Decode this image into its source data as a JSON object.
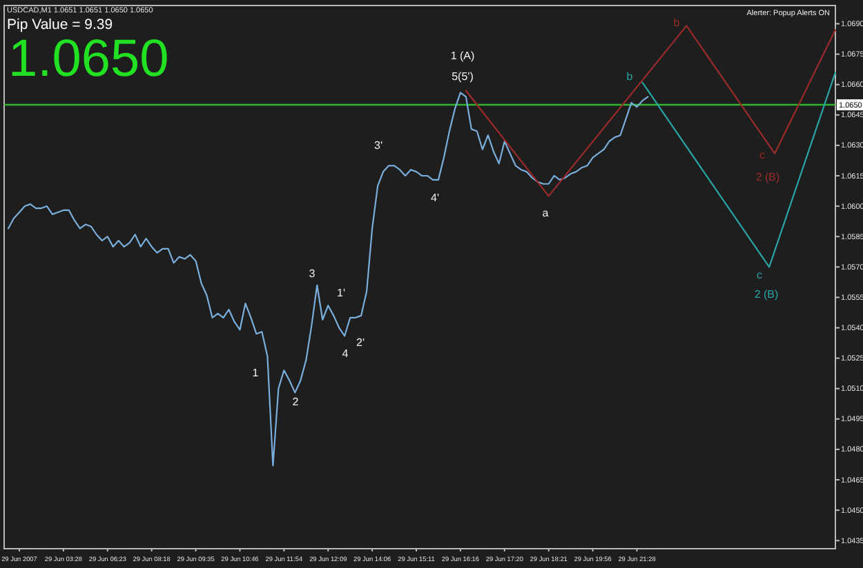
{
  "chart_data": {
    "type": "line",
    "title": "USDCAD,M1  1.0651 1.0651 1.0650 1.0650",
    "subtitle": "Pip Value = 9.39",
    "annotations": [
      "1.0650",
      "Alerter:  Popup Alerts ON",
      "1",
      "2",
      "3",
      "4",
      "1'",
      "2'",
      "3'",
      "4'",
      "1 (A)",
      "5(5')",
      "a",
      "b",
      "b",
      "c",
      "2 (B)",
      "c",
      "2 (B)"
    ],
    "categories": [
      null,
      null,
      "29 Jun 2007",
      null,
      null,
      null,
      null,
      null,
      null,
      null,
      "29 Jun 03:28",
      null,
      null,
      null,
      null,
      null,
      null,
      null,
      "29 Jun 06:23",
      null,
      null,
      null,
      null,
      null,
      null,
      null,
      "29 Jun 08:18",
      null,
      null,
      null,
      null,
      null,
      null,
      null,
      "29 Jun 09:35",
      null,
      null,
      null,
      null,
      null,
      null,
      null,
      "29 Jun 10:46",
      null,
      null,
      null,
      null,
      null,
      null,
      null,
      "29 Jun 11:54",
      null,
      null,
      null,
      null,
      null,
      null,
      null,
      "29 Jun 12:09",
      null,
      null,
      null,
      null,
      null,
      null,
      null,
      "29 Jun 14:06",
      null,
      null,
      null,
      null,
      null,
      null,
      null,
      "29 Jun 15:11",
      null,
      null,
      null,
      null,
      null,
      null,
      null,
      "29 Jun 16:16",
      null,
      null,
      null,
      null,
      null,
      null,
      null,
      "29 Jun 17:20",
      null,
      null,
      null,
      null,
      null,
      null,
      null,
      "29 Jun 18:21",
      null,
      null,
      null,
      null,
      null,
      null,
      null,
      "29 Jun 19:56",
      null,
      null,
      null,
      null,
      null,
      null,
      null,
      "29 Jun 21:28",
      null,
      null,
      null,
      null,
      null,
      null,
      null,
      null,
      null,
      null,
      null,
      null,
      null,
      null,
      null,
      null,
      null,
      null,
      null,
      null,
      null,
      null,
      null,
      null,
      null,
      null,
      null,
      null,
      null,
      null,
      null,
      null,
      null,
      null,
      null,
      null
    ],
    "series": [
      {
        "color": "#7aaedc",
        "values": [
          1.0589,
          1.0594,
          1.0597,
          1.06,
          1.0601,
          1.0599,
          1.0599,
          1.06,
          1.0596,
          1.0597,
          1.0598,
          1.0598,
          1.0593,
          1.0589,
          1.0591,
          1.059,
          1.0586,
          1.0583,
          1.0585,
          1.058,
          1.0583,
          1.058,
          1.0582,
          1.0586,
          1.058,
          1.0584,
          1.058,
          1.0577,
          1.0579,
          1.0579,
          1.0572,
          1.0575,
          1.0574,
          1.0576,
          1.0573,
          1.0562,
          1.0556,
          1.0545,
          1.0547,
          1.0545,
          1.0549,
          1.0543,
          1.0539,
          1.0552,
          1.0545,
          1.0537,
          1.0538,
          1.0526,
          1.0472,
          1.051,
          1.0519,
          1.0514,
          1.0508,
          1.0514,
          1.0524,
          1.0541,
          1.0561,
          1.0544,
          1.0551,
          1.0546,
          1.054,
          1.0536,
          1.0545,
          1.0545,
          1.0546,
          1.0558,
          1.0589,
          1.061,
          1.0617,
          1.062,
          1.062,
          1.0618,
          1.0615,
          1.0618,
          1.0617,
          1.0615,
          1.0615,
          1.0613,
          1.0613,
          1.0624,
          1.0637,
          1.0648,
          1.0656,
          1.0654,
          1.0638,
          1.0637,
          1.0628,
          1.0635,
          1.0627,
          1.0621,
          1.0632,
          1.0626,
          1.062,
          1.0618,
          1.0617,
          1.0614,
          1.0612,
          1.0611,
          1.0611,
          1.0615,
          1.0613,
          1.0614,
          1.0616,
          1.0617,
          1.0619,
          1.062,
          1.0624,
          1.0626,
          1.0628,
          1.0632,
          1.0634,
          1.0635,
          1.0643,
          1.0651,
          1.0649,
          1.0652,
          1.0654,
          null,
          null,
          null,
          null,
          null,
          null,
          null,
          null,
          null,
          null,
          null,
          null,
          null,
          null,
          null,
          null,
          null,
          null,
          null,
          null,
          null,
          null,
          null,
          null,
          null,
          null,
          null,
          null,
          null,
          null,
          null,
          null,
          null,
          null
        ]
      },
      {
        "color": "#9b2a2a",
        "values": [
          null,
          null,
          null,
          null,
          null,
          null,
          null,
          null,
          null,
          null,
          null,
          null,
          null,
          null,
          null,
          null,
          null,
          null,
          null,
          null,
          null,
          null,
          null,
          null,
          null,
          null,
          null,
          null,
          null,
          null,
          null,
          null,
          null,
          null,
          null,
          null,
          null,
          null,
          null,
          null,
          null,
          null,
          null,
          null,
          null,
          null,
          null,
          null,
          null,
          null,
          null,
          null,
          null,
          null,
          null,
          null,
          null,
          null,
          null,
          null,
          null,
          null,
          null,
          null,
          null,
          null,
          null,
          null,
          null,
          null,
          null,
          null,
          null,
          null,
          null,
          null,
          null,
          null,
          null,
          null,
          null,
          null,
          null,
          1.0657,
          null,
          null,
          null,
          null,
          null,
          null,
          null,
          null,
          null,
          null,
          null,
          null,
          null,
          null,
          1.0605,
          null,
          null,
          null,
          null,
          null,
          null,
          null,
          null,
          null,
          null,
          null,
          null,
          null,
          null,
          null,
          null,
          null,
          null,
          null,
          null,
          null,
          null,
          null,
          null,
          1.0689,
          null,
          null,
          null,
          null,
          null,
          null,
          null,
          null,
          null,
          null,
          null,
          null,
          null,
          null,
          null,
          1.0626,
          null,
          null,
          null,
          null,
          null,
          null,
          null,
          null,
          null,
          null,
          1.0687
        ]
      },
      {
        "color": "#2aa5a5",
        "values": [
          null,
          null,
          null,
          null,
          null,
          null,
          null,
          null,
          null,
          null,
          null,
          null,
          null,
          null,
          null,
          null,
          null,
          null,
          null,
          null,
          null,
          null,
          null,
          null,
          null,
          null,
          null,
          null,
          null,
          null,
          null,
          null,
          null,
          null,
          null,
          null,
          null,
          null,
          null,
          null,
          null,
          null,
          null,
          null,
          null,
          null,
          null,
          null,
          null,
          null,
          null,
          null,
          null,
          null,
          null,
          null,
          null,
          null,
          null,
          null,
          null,
          null,
          null,
          null,
          null,
          null,
          null,
          null,
          null,
          null,
          null,
          null,
          null,
          null,
          null,
          null,
          null,
          null,
          null,
          null,
          null,
          null,
          null,
          null,
          null,
          null,
          null,
          null,
          null,
          null,
          null,
          null,
          null,
          null,
          null,
          null,
          null,
          null,
          null,
          null,
          null,
          null,
          null,
          null,
          null,
          null,
          null,
          null,
          null,
          null,
          null,
          null,
          null,
          null,
          null,
          1.0661,
          null,
          null,
          null,
          null,
          null,
          null,
          null,
          null,
          null,
          null,
          null,
          null,
          null,
          null,
          null,
          null,
          null,
          null,
          null,
          null,
          null,
          null,
          1.057,
          null,
          null,
          null,
          null,
          null,
          null,
          null,
          null,
          null,
          null,
          null,
          1.0666
        ]
      }
    ],
    "ylim": [
      1.0431,
      1.0699
    ],
    "yticks": [
      1.0435,
      {
        "value": 1.045,
        "label": "1.0450"
      },
      1.0465,
      {
        "value": 1.048,
        "label": "1.0480"
      },
      1.0495,
      {
        "value": 1.051,
        "label": "1.0510"
      },
      1.0525,
      {
        "value": 1.054,
        "label": "1.0540"
      },
      1.0555,
      {
        "value": 1.057,
        "label": "1.0570"
      },
      1.0585,
      {
        "value": 1.06,
        "label": "1.0600"
      },
      1.0615,
      {
        "value": 1.063,
        "label": "1.0630"
      },
      1.0645,
      {
        "value": 1.066,
        "label": "1.0660"
      },
      1.0675,
      {
        "value": 1.069,
        "label": "1.0690"
      }
    ],
    "ref_lines": [
      {
        "axis": "y",
        "value": 1.065,
        "label": "1.0650",
        "color": "#2db82d"
      }
    ],
    "grid": false,
    "marker": "none",
    "line_style": "solid"
  }
}
